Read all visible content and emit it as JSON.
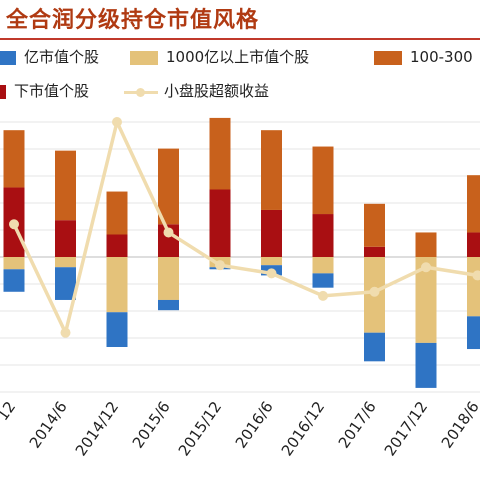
{
  "title": "全合润分级持仓市值风格",
  "legend": [
    {
      "label": "亿市值个股",
      "color": "#2f74c4",
      "kind": "bar"
    },
    {
      "label": "1000亿以上市值个股",
      "color": "#e4c27a",
      "kind": "bar"
    },
    {
      "label": "100-300",
      "color": "#c8611c",
      "kind": "bar"
    },
    {
      "label": "下市值个股",
      "color": "#a90f12",
      "kind": "bar"
    },
    {
      "label": "小盘股超额收益",
      "color": "#f0dcae",
      "kind": "line"
    }
  ],
  "chart_data": {
    "type": "bar",
    "categories": [
      "12",
      "2014/6",
      "2014/12",
      "2015/6",
      "2015/12",
      "2016/6",
      "2016/12",
      "2017/6",
      "2017/12",
      "2018/6"
    ],
    "x_tick_labels": [
      "12",
      "2014/6",
      "2014/12",
      "2015/6",
      "2015/12",
      "2016/6",
      "2016/12",
      "2017/6",
      "2017/12",
      "2018/6"
    ],
    "grid": true,
    "series": [
      {
        "name": "下市值个股",
        "color": "#a90f12",
        "stack": "positive",
        "values": [
          0.34,
          0.18,
          0.11,
          0.16,
          0.33,
          0.23,
          0.21,
          0.05,
          0.0,
          0.12
        ]
      },
      {
        "name": "100-300",
        "color": "#c8611c",
        "stack": "positive",
        "values": [
          0.28,
          0.34,
          0.21,
          0.37,
          0.35,
          0.39,
          0.33,
          0.21,
          0.12,
          0.28
        ]
      },
      {
        "name": "1000亿以上市值个股",
        "color": "#e4c27a",
        "stack": "negative",
        "values": [
          -0.06,
          -0.05,
          -0.27,
          -0.21,
          -0.05,
          -0.04,
          -0.08,
          -0.37,
          -0.42,
          -0.29
        ]
      },
      {
        "name": "亿市值个股",
        "color": "#2f74c4",
        "stack": "negative",
        "values": [
          -0.11,
          -0.16,
          -0.17,
          -0.05,
          -0.01,
          -0.05,
          -0.07,
          -0.14,
          -0.22,
          -0.16
        ]
      },
      {
        "name": "小盘股超额收益",
        "color": "#f0dcae",
        "kind": "line",
        "values": [
          0.16,
          -0.37,
          0.66,
          0.12,
          -0.04,
          -0.08,
          -0.19,
          -0.17,
          -0.05,
          -0.09
        ]
      }
    ],
    "ylim": [
      -0.66,
      0.66
    ]
  }
}
